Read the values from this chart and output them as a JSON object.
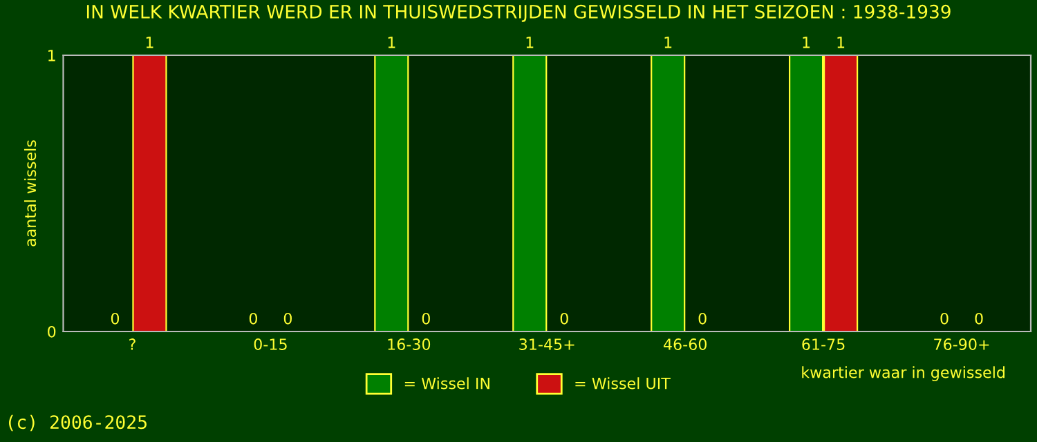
{
  "chart_data": {
    "type": "bar",
    "title": "IN WELK KWARTIER WERD ER IN THUISWEDSTRIJDEN GEWISSELD IN HET SEIZOEN : 1938-1939",
    "categories": [
      "?",
      "0-15",
      "16-30",
      "31-45+",
      "46-60",
      "61-75",
      "76-90+"
    ],
    "series": [
      {
        "name": "= Wissel IN",
        "color": "#008000",
        "values": [
          0,
          0,
          1,
          1,
          1,
          1,
          0
        ]
      },
      {
        "name": "= Wissel UIT",
        "color": "#cc1111",
        "values": [
          1,
          0,
          0,
          0,
          0,
          1,
          0
        ]
      }
    ],
    "ylim": [
      0,
      1
    ],
    "yticks": [
      0,
      1
    ],
    "ylabel": "aantal wissels",
    "xlabel": "kwartier waar in gewisseld",
    "data_labels": true,
    "legend": "bottom",
    "grid": false,
    "annotations": [
      "(c) 2006-2025"
    ]
  }
}
